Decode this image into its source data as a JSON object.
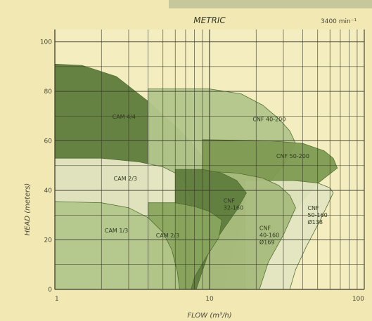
{
  "chart_data": {
    "type": "area",
    "title": "METRIC",
    "subtitle": "3400 min⁻¹",
    "xlabel": "FLOW (m³/h)",
    "ylabel": "HEAD (meters)",
    "xscale": "log",
    "xlim": [
      1,
      100
    ],
    "ylim": [
      0,
      105
    ],
    "grid": true,
    "x_ticks": [
      {
        "value": 1,
        "label": "1"
      },
      {
        "value": 10,
        "label": "10"
      },
      {
        "value": 100,
        "label": "100"
      }
    ],
    "y_ticks": [
      {
        "value": 0,
        "label": "0"
      },
      {
        "value": 20,
        "label": "20"
      },
      {
        "value": 40,
        "label": "40"
      },
      {
        "value": 60,
        "label": "60"
      },
      {
        "value": 80,
        "label": "80"
      },
      {
        "value": 100,
        "label": "100"
      }
    ],
    "colors": {
      "background": "#f1e8b3",
      "plot_background": "#f3edbf",
      "dark_green": "#5f7d3d",
      "mid_green": "#8aa65e",
      "light_green": "#b3c78c",
      "pale_green": "#d8e0b2",
      "grid": "#3a3a2a"
    },
    "regions": [
      {
        "name": "CAM 4/4",
        "label_lines": [
          "CAM 4/4"
        ],
        "label_x": 2.35,
        "label_y": 69,
        "color": "#5f7d3d",
        "points": [
          [
            1,
            0
          ],
          [
            1,
            91
          ],
          [
            1.5,
            90.5
          ],
          [
            2.5,
            86
          ],
          [
            4,
            76
          ],
          [
            6,
            66
          ],
          [
            8,
            58
          ],
          [
            9.8,
            50
          ],
          [
            10.3,
            44
          ],
          [
            10,
            36
          ],
          [
            9.3,
            20
          ],
          [
            8.8,
            5
          ],
          [
            8.6,
            0
          ]
        ]
      },
      {
        "name": "CNF 40-200",
        "label_lines": [
          "CNF 40-200"
        ],
        "label_x": 19,
        "label_y": 68,
        "color": "#b3c78c",
        "points": [
          [
            4,
            0
          ],
          [
            4,
            81
          ],
          [
            10,
            81
          ],
          [
            16,
            79
          ],
          [
            22,
            74.5
          ],
          [
            28,
            69
          ],
          [
            33,
            64
          ],
          [
            36,
            59
          ],
          [
            30,
            50
          ],
          [
            22,
            40
          ],
          [
            17,
            28
          ],
          [
            14,
            15
          ],
          [
            12.5,
            0
          ]
        ]
      },
      {
        "name": "CNF 50-200",
        "label_lines": [
          "CNF 50-200"
        ],
        "label_x": 27,
        "label_y": 53,
        "color": "#7f9b52",
        "points": [
          [
            9,
            0
          ],
          [
            9,
            60.5
          ],
          [
            25,
            60
          ],
          [
            40,
            59
          ],
          [
            55,
            56
          ],
          [
            63,
            53
          ],
          [
            67,
            49
          ],
          [
            48,
            42
          ],
          [
            38,
            34
          ],
          [
            30,
            23
          ],
          [
            22,
            10
          ],
          [
            17,
            0
          ]
        ]
      },
      {
        "name": "CAM 2/3",
        "label_lines": [
          "CAM 2/3"
        ],
        "label_x": 2.4,
        "label_y": 44,
        "color": "#e6e8c4",
        "points": [
          [
            1,
            0
          ],
          [
            1,
            53
          ],
          [
            2,
            53
          ],
          [
            3.5,
            51.5
          ],
          [
            5,
            49.5
          ],
          [
            6,
            47
          ],
          [
            6.8,
            44
          ],
          [
            7.3,
            40
          ],
          [
            7.7,
            33
          ],
          [
            7.2,
            20
          ],
          [
            6.6,
            6
          ],
          [
            6.4,
            0
          ]
        ]
      },
      {
        "name": "CNF 50-160",
        "label_lines": [
          "CNF",
          "50-160",
          "Ø138"
        ],
        "label_x": 43,
        "label_y": 32,
        "color": "#e3e6c1",
        "points": [
          [
            17,
            0
          ],
          [
            17,
            44
          ],
          [
            35,
            44
          ],
          [
            50,
            43
          ],
          [
            60,
            41
          ],
          [
            63,
            39
          ],
          [
            52,
            28
          ],
          [
            42,
            17
          ],
          [
            36,
            8
          ],
          [
            33,
            0
          ]
        ]
      },
      {
        "name": "CNF 40-160 Ø169",
        "label_lines": [
          "CNF",
          "40-160",
          "Ø169"
        ],
        "label_x": 21,
        "label_y": 24,
        "color": "#a9bd7e",
        "points": [
          [
            8,
            0
          ],
          [
            8,
            48
          ],
          [
            15,
            47
          ],
          [
            22,
            45
          ],
          [
            28,
            42
          ],
          [
            33,
            38
          ],
          [
            36,
            33
          ],
          [
            30,
            22
          ],
          [
            24,
            11
          ],
          [
            21,
            0
          ]
        ]
      },
      {
        "name": "CNF 32-160",
        "label_lines": [
          "CNF",
          "32-160"
        ],
        "label_x": 12.3,
        "label_y": 35,
        "color": "#5f7d3d",
        "points": [
          [
            6,
            0
          ],
          [
            6,
            48.5
          ],
          [
            9,
            48.5
          ],
          [
            12,
            47
          ],
          [
            15,
            44
          ],
          [
            17.3,
            39
          ],
          [
            15,
            32
          ],
          [
            12.5,
            25
          ],
          [
            10,
            16
          ],
          [
            8.2,
            0
          ]
        ]
      },
      {
        "name": "CAM 2/3 lower",
        "label_lines": [
          "CAM 2/3"
        ],
        "label_x": 4.5,
        "label_y": 21,
        "color": "#8aa65e",
        "points": [
          [
            4,
            0
          ],
          [
            4,
            35
          ],
          [
            6,
            35
          ],
          [
            8,
            33.5
          ],
          [
            10,
            31.5
          ],
          [
            12,
            28
          ],
          [
            11.5,
            21
          ],
          [
            9.5,
            13
          ],
          [
            8,
            5
          ],
          [
            7.6,
            0
          ]
        ]
      },
      {
        "name": "CAM 1/3",
        "label_lines": [
          "CAM 1/3"
        ],
        "label_x": 2.1,
        "label_y": 23,
        "color": "#b3c78c",
        "points": [
          [
            1,
            0
          ],
          [
            1,
            35.5
          ],
          [
            2,
            35
          ],
          [
            3,
            33
          ],
          [
            4,
            29
          ],
          [
            5,
            23
          ],
          [
            5.7,
            16
          ],
          [
            6.2,
            7
          ],
          [
            6.4,
            0
          ]
        ]
      }
    ]
  }
}
